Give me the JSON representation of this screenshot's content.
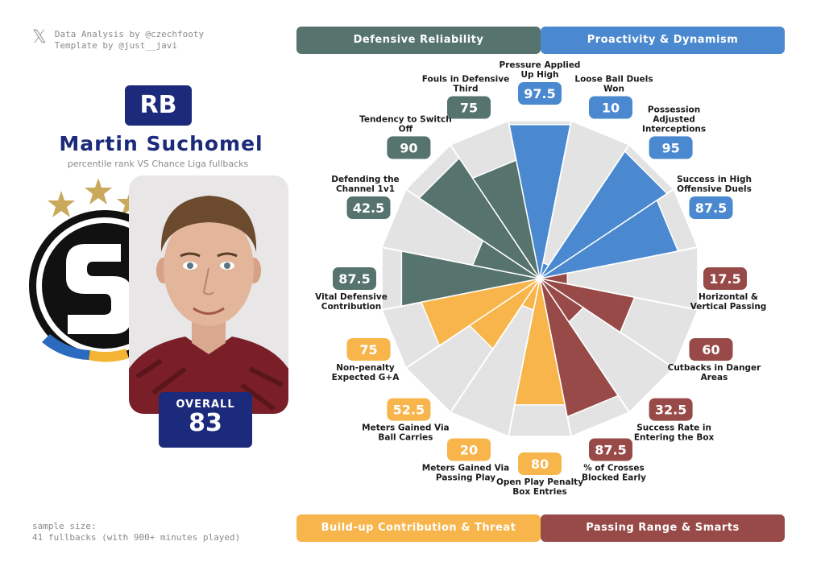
{
  "credits": {
    "x_logo": "𝕏",
    "analysis": "Data Analysis by @czechfooty",
    "template": "Template by @just__javi"
  },
  "player": {
    "position": "RB",
    "name": "Martin Suchomel",
    "subtitle": "percentile rank VS Chance Liga fullbacks",
    "overall_label": "OVERALL",
    "overall_value": "83"
  },
  "sample": {
    "line1": "sample size:",
    "line2": "41 fullbacks (with 900+ minutes played)"
  },
  "categories": {
    "defensive": "Defensive Reliability",
    "proactivity": "Proactivity & Dynamism",
    "buildup": "Build-up Contribution & Threat",
    "passing": "Passing Range & Smarts"
  },
  "colors": {
    "defensive": "#56736d",
    "proactivity": "#4a88d0",
    "buildup": "#f7b54b",
    "passing": "#974a48",
    "navy": "#1b2a7a"
  },
  "chart_data": {
    "type": "polar-bar",
    "range": [
      0,
      100
    ],
    "metrics": [
      {
        "label": "Pressure Applied Up High",
        "value": 97.5,
        "display": "97.5",
        "group": "proactivity"
      },
      {
        "label": "Loose Ball Duels Won",
        "value": 10,
        "display": "10",
        "group": "proactivity"
      },
      {
        "label": "Possession Adjusted Interceptions",
        "value": 95,
        "display": "95",
        "group": "proactivity"
      },
      {
        "label": "Success in High Offensive Duels",
        "value": 87.5,
        "display": "87.5",
        "group": "proactivity"
      },
      {
        "label": "Horizontal & Vertical Passing",
        "value": 17.5,
        "display": "17.5",
        "group": "passing"
      },
      {
        "label": "Cutbacks in Danger Areas",
        "value": 60,
        "display": "60",
        "group": "passing"
      },
      {
        "label": "Success Rate in Entering the Box",
        "value": 32.5,
        "display": "32.5",
        "group": "passing"
      },
      {
        "label": "% of Crosses Blocked Early",
        "value": 87.5,
        "display": "87.5",
        "group": "passing"
      },
      {
        "label": "Open Play Penalty Box Entries",
        "value": 80,
        "display": "80",
        "group": "buildup"
      },
      {
        "label": "Meters Gained Via Passing Play",
        "value": 20,
        "display": "20",
        "group": "buildup"
      },
      {
        "label": "Meters Gained Via Ball Carries",
        "value": 52.5,
        "display": "52.5",
        "group": "buildup"
      },
      {
        "label": "Non-penalty Expected G+A",
        "value": 75,
        "display": "75",
        "group": "buildup"
      },
      {
        "label": "Vital Defensive Contribution",
        "value": 87.5,
        "display": "87.5",
        "group": "defensive"
      },
      {
        "label": "Defending the Channel 1v1",
        "value": 42.5,
        "display": "42.5",
        "group": "defensive"
      },
      {
        "label": "Tendency to Switch Off",
        "value": 90,
        "display": "90",
        "group": "defensive"
      },
      {
        "label": "Fouls in Defensive Third",
        "value": 75,
        "display": "75",
        "group": "defensive"
      }
    ]
  }
}
